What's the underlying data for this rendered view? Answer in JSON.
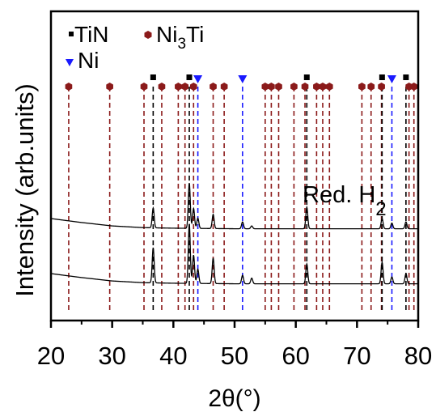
{
  "chart_data": {
    "type": "line",
    "xlabel": "2θ(°)",
    "ylabel": "Intensity (arb.units)",
    "xlim": [
      20,
      80
    ],
    "x_ticks": [
      20,
      30,
      40,
      50,
      60,
      70,
      80
    ],
    "annotation": {
      "text": "Red. H",
      "subscript": "2"
    },
    "legend": [
      {
        "label": "TiN",
        "marker": "square",
        "color": "#000000"
      },
      {
        "label_main": "Ni",
        "label_sub": "3",
        "label_tail": "Ti",
        "marker": "hexagon",
        "color": "#8b1a1a"
      },
      {
        "label": "Ni",
        "marker": "triangle-down",
        "color": "#1a1aff"
      }
    ],
    "reference_lines": {
      "TiN": {
        "color": "#000000",
        "positions": [
          36.7,
          42.6,
          61.8,
          74.1,
          78.0
        ]
      },
      "Ni": {
        "color": "#1a1aff",
        "positions": [
          44.0,
          51.3,
          75.7
        ]
      },
      "Ni3Ti": {
        "color": "#8b1a1a",
        "positions": [
          22.9,
          29.6,
          35.2,
          38.1,
          40.8,
          41.9,
          43.3,
          46.5,
          48.3,
          55.0,
          56.0,
          57.2,
          59.7,
          61.5,
          63.4,
          64.4,
          65.5,
          70.8,
          72.3,
          74.0,
          78.5,
          79.3
        ]
      }
    },
    "series": [
      {
        "offset": 1.0,
        "baseline": [
          [
            20.0,
            0.2
          ],
          [
            25.0,
            0.13
          ],
          [
            30.0,
            0.07
          ],
          [
            35.0,
            0.04
          ],
          [
            40.0,
            0.03
          ],
          [
            50.0,
            0.02
          ],
          [
            60.0,
            0.02
          ],
          [
            70.0,
            0.02
          ],
          [
            80.0,
            0.02
          ]
        ],
        "peaks": [
          [
            36.7,
            0.35
          ],
          [
            42.6,
            0.8
          ],
          [
            43.3,
            0.35
          ],
          [
            44.0,
            0.18
          ],
          [
            46.5,
            0.25
          ],
          [
            51.3,
            0.12
          ],
          [
            52.8,
            0.05
          ],
          [
            61.8,
            0.38
          ],
          [
            74.1,
            0.18
          ],
          [
            75.7,
            0.1
          ],
          [
            78.0,
            0.12
          ]
        ]
      },
      {
        "offset": 0.0,
        "baseline": [
          [
            20.0,
            0.2
          ],
          [
            25.0,
            0.13
          ],
          [
            30.0,
            0.07
          ],
          [
            35.0,
            0.04
          ],
          [
            40.0,
            0.03
          ],
          [
            50.0,
            0.02
          ],
          [
            60.0,
            0.02
          ],
          [
            70.0,
            0.02
          ],
          [
            80.0,
            0.02
          ]
        ],
        "peaks": [
          [
            36.7,
            0.62
          ],
          [
            42.6,
            1.05
          ],
          [
            43.3,
            0.5
          ],
          [
            44.0,
            0.25
          ],
          [
            46.5,
            0.45
          ],
          [
            51.3,
            0.15
          ],
          [
            52.8,
            0.1
          ],
          [
            61.8,
            0.35
          ],
          [
            74.1,
            0.38
          ],
          [
            75.7,
            0.12
          ],
          [
            78.0,
            0.18
          ]
        ]
      }
    ]
  }
}
